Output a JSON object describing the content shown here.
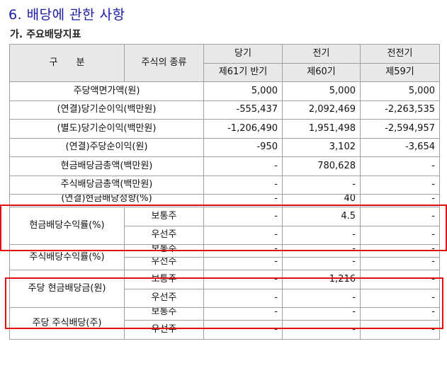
{
  "section_title": "6. 배당에 관한 사항",
  "subsection_title": "가. 주요배당지표",
  "table": {
    "header": {
      "category": "구　　분",
      "stock_type": "주식의 종류",
      "periods": [
        {
          "label": "당기",
          "sub": "제61기 반기"
        },
        {
          "label": "전기",
          "sub": "제60기"
        },
        {
          "label": "전전기",
          "sub": "제59기"
        }
      ]
    },
    "simple_rows": [
      {
        "label": "주당액면가액(원)",
        "values": [
          "5,000",
          "5,000",
          "5,000"
        ]
      },
      {
        "label": "(연결)당기순이익(백만원)",
        "values": [
          "-555,437",
          "2,092,469",
          "-2,263,535"
        ]
      },
      {
        "label": "(별도)당기순이익(백만원)",
        "values": [
          "-1,206,490",
          "1,951,498",
          "-2,594,957"
        ]
      },
      {
        "label": "(연결)주당순이익(원)",
        "values": [
          "-950",
          "3,102",
          "-3,654"
        ]
      },
      {
        "label": "현금배당금총액(백만원)",
        "values": [
          "-",
          "780,628",
          "-"
        ]
      },
      {
        "label": "주식배당금총액(백만원)",
        "values": [
          "-",
          "-",
          "-"
        ]
      },
      {
        "label": "(연결)현금배당성향(%)",
        "values": [
          "-",
          "40",
          "-"
        ]
      }
    ],
    "groups": [
      {
        "label": "현금배당수익률(%)",
        "rows": [
          {
            "type": "보통주",
            "values": [
              "-",
              "4.5",
              "-"
            ]
          },
          {
            "type": "우선주",
            "values": [
              "-",
              "-",
              "-"
            ]
          }
        ]
      },
      {
        "label": "주식배당수익률(%)",
        "rows": [
          {
            "type": "보통주",
            "values": [
              "-",
              "-",
              "-"
            ]
          },
          {
            "type": "우선주",
            "values": [
              "-",
              "-",
              "-"
            ]
          }
        ]
      },
      {
        "label": "주당 현금배당금(원)",
        "rows": [
          {
            "type": "보통주",
            "values": [
              "-",
              "1,216",
              "-"
            ]
          },
          {
            "type": "우선주",
            "values": [
              "-",
              "-",
              "-"
            ]
          }
        ]
      },
      {
        "label": "주당 주식배당(주)",
        "rows": [
          {
            "type": "보통주",
            "values": [
              "-",
              "-",
              "-"
            ]
          },
          {
            "type": "우선주",
            "values": [
              "-",
              "-",
              "-"
            ]
          }
        ]
      }
    ]
  },
  "highlight_color": "#e01010"
}
